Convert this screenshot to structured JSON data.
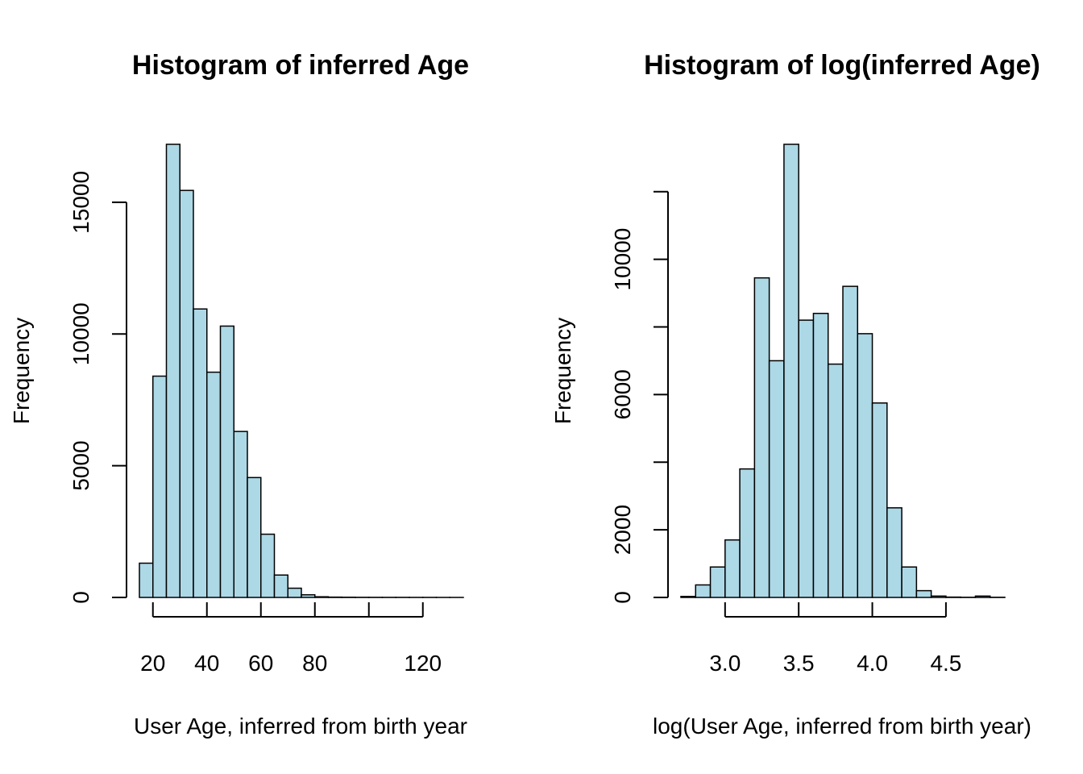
{
  "chart_data": [
    {
      "type": "bar",
      "title": "Histogram of inferred Age",
      "xlabel": "User Age, inferred from birth year",
      "ylabel": "Frequency",
      "bar_color": "#add8e6",
      "bin_width": 5,
      "xlim": [
        15,
        135
      ],
      "ylim": [
        0,
        17200
      ],
      "x_ticks": [
        20,
        40,
        60,
        80,
        120
      ],
      "x_tick_marks": [
        20,
        40,
        60,
        80,
        100,
        120
      ],
      "x_tick_labels": [
        "20",
        "40",
        "60",
        "80",
        "120"
      ],
      "y_ticks": [
        0,
        5000,
        10000,
        15000
      ],
      "y_tick_labels": [
        "0",
        "5000",
        "10000",
        "15000"
      ],
      "grid": false,
      "bins": [
        {
          "x0": 15,
          "x1": 20,
          "value": 1300
        },
        {
          "x0": 20,
          "x1": 25,
          "value": 8400
        },
        {
          "x0": 25,
          "x1": 30,
          "value": 17200
        },
        {
          "x0": 30,
          "x1": 35,
          "value": 15450
        },
        {
          "x0": 35,
          "x1": 40,
          "value": 10950
        },
        {
          "x0": 40,
          "x1": 45,
          "value": 8550
        },
        {
          "x0": 45,
          "x1": 50,
          "value": 10300
        },
        {
          "x0": 50,
          "x1": 55,
          "value": 6300
        },
        {
          "x0": 55,
          "x1": 60,
          "value": 4550
        },
        {
          "x0": 60,
          "x1": 65,
          "value": 2400
        },
        {
          "x0": 65,
          "x1": 70,
          "value": 850
        },
        {
          "x0": 70,
          "x1": 75,
          "value": 350
        },
        {
          "x0": 75,
          "x1": 80,
          "value": 100
        },
        {
          "x0": 80,
          "x1": 85,
          "value": 25
        },
        {
          "x0": 85,
          "x1": 90,
          "value": 12
        },
        {
          "x0": 90,
          "x1": 95,
          "value": 8
        },
        {
          "x0": 95,
          "x1": 100,
          "value": 5
        },
        {
          "x0": 100,
          "x1": 105,
          "value": 4
        },
        {
          "x0": 105,
          "x1": 110,
          "value": 3
        },
        {
          "x0": 110,
          "x1": 115,
          "value": 3
        },
        {
          "x0": 115,
          "x1": 120,
          "value": 2
        },
        {
          "x0": 120,
          "x1": 125,
          "value": 2
        },
        {
          "x0": 125,
          "x1": 130,
          "value": 1
        },
        {
          "x0": 130,
          "x1": 135,
          "value": 1
        }
      ]
    },
    {
      "type": "bar",
      "title": "Histogram of log(inferred Age)",
      "xlabel": "log(User Age, inferred from birth year)",
      "ylabel": "Frequency",
      "bar_color": "#add8e6",
      "bin_width": 0.1,
      "xlim": [
        2.7,
        4.9
      ],
      "ylim": [
        0,
        13400
      ],
      "x_ticks": [
        3.0,
        3.5,
        4.0,
        4.5
      ],
      "x_tick_labels": [
        "3.0",
        "3.5",
        "4.0",
        "4.5"
      ],
      "y_ticks": [
        0,
        2000,
        4000,
        6000,
        8000,
        10000,
        12000
      ],
      "y_tick_labels": [
        "0",
        "2000",
        "",
        "6000",
        "",
        "10000",
        ""
      ],
      "grid": false,
      "bins": [
        {
          "x0": 2.7,
          "x1": 2.8,
          "value": 30
        },
        {
          "x0": 2.8,
          "x1": 2.9,
          "value": 370
        },
        {
          "x0": 2.9,
          "x1": 3.0,
          "value": 900
        },
        {
          "x0": 3.0,
          "x1": 3.1,
          "value": 1700
        },
        {
          "x0": 3.1,
          "x1": 3.2,
          "value": 3800
        },
        {
          "x0": 3.2,
          "x1": 3.3,
          "value": 9450
        },
        {
          "x0": 3.3,
          "x1": 3.4,
          "value": 7000
        },
        {
          "x0": 3.4,
          "x1": 3.5,
          "value": 13400
        },
        {
          "x0": 3.5,
          "x1": 3.6,
          "value": 8200
        },
        {
          "x0": 3.6,
          "x1": 3.7,
          "value": 8400
        },
        {
          "x0": 3.7,
          "x1": 3.8,
          "value": 6900
        },
        {
          "x0": 3.8,
          "x1": 3.9,
          "value": 9200
        },
        {
          "x0": 3.9,
          "x1": 4.0,
          "value": 7800
        },
        {
          "x0": 4.0,
          "x1": 4.1,
          "value": 5750
        },
        {
          "x0": 4.1,
          "x1": 4.2,
          "value": 2650
        },
        {
          "x0": 4.2,
          "x1": 4.3,
          "value": 900
        },
        {
          "x0": 4.3,
          "x1": 4.4,
          "value": 200
        },
        {
          "x0": 4.4,
          "x1": 4.5,
          "value": 40
        },
        {
          "x0": 4.5,
          "x1": 4.6,
          "value": 10
        },
        {
          "x0": 4.6,
          "x1": 4.7,
          "value": 5
        },
        {
          "x0": 4.7,
          "x1": 4.8,
          "value": 40
        },
        {
          "x0": 4.8,
          "x1": 4.9,
          "value": 5
        }
      ]
    }
  ]
}
